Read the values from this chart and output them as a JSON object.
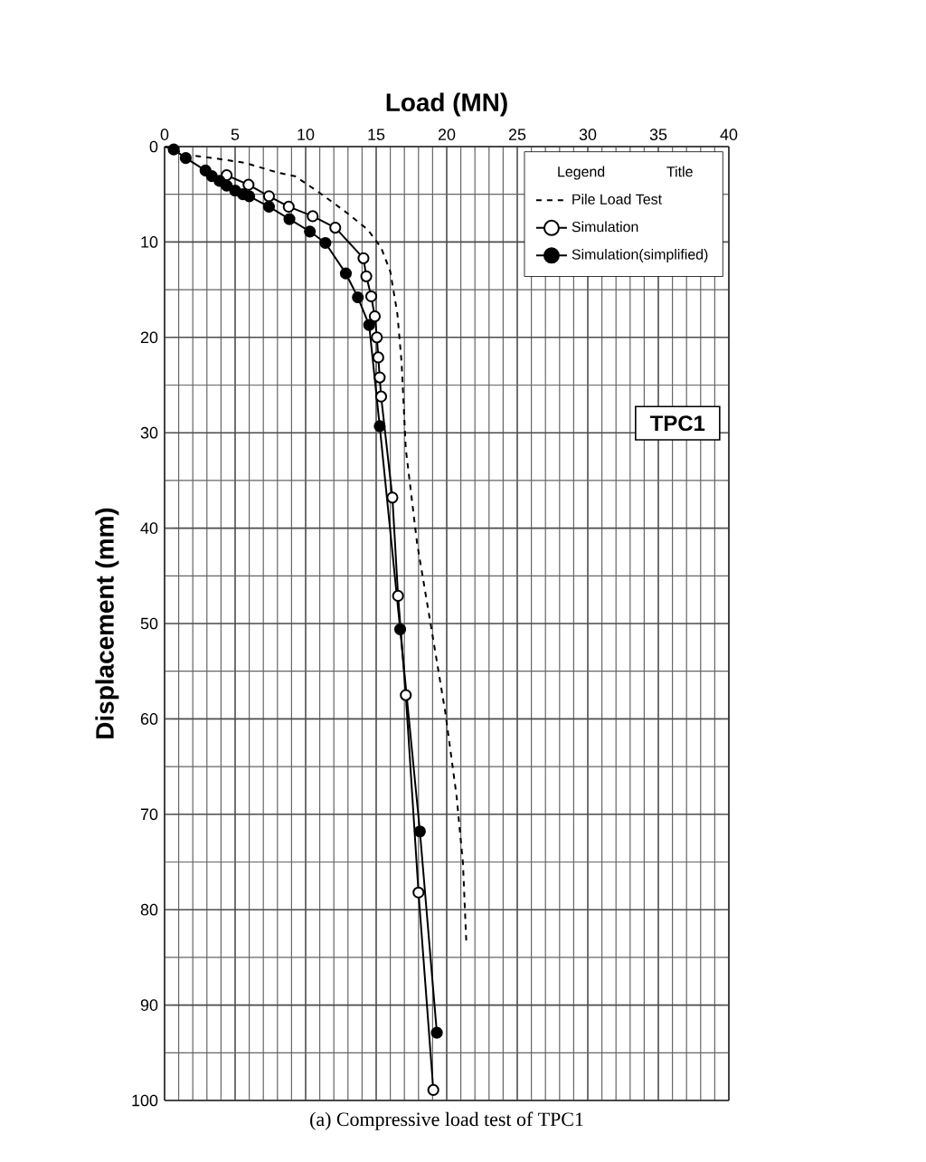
{
  "chart_data": {
    "type": "line",
    "xlabel": "Load (MN)",
    "ylabel": "Displacement (mm)",
    "xlim": [
      0,
      40
    ],
    "xticks": [
      0,
      5,
      10,
      15,
      20,
      25,
      30,
      35,
      40
    ],
    "ylim": [
      100,
      0
    ],
    "yticks": [
      0,
      10,
      20,
      30,
      40,
      50,
      60,
      70,
      80,
      90,
      100
    ],
    "grid": true,
    "legend": "top right",
    "legend_title": "Legend",
    "annotations": [
      "Title",
      "TPC1",
      "(a) Compressive load test of TPC1"
    ],
    "series": [
      {
        "name": "Pile Load Test",
        "color": "#000000",
        "marker": "none",
        "line_style": "dashed",
        "x": [
          0,
          1.8,
          3.45,
          5.7,
          7.95,
          9.25,
          10.85,
          12.8,
          14.4,
          15.35,
          16.0,
          16.5,
          16.8,
          17.1,
          17.9,
          18.9,
          19.9,
          20.7,
          21.15,
          21.4
        ],
        "values": [
          0,
          0.9,
          1.2,
          1.7,
          2.7,
          3.1,
          4.7,
          6.8,
          8.7,
          10.6,
          13.1,
          17.5,
          22.6,
          31.7,
          41.6,
          50.4,
          59.3,
          68.1,
          75.1,
          83.8
        ]
      },
      {
        "name": "Simulation",
        "color": "#000000",
        "marker": "circle",
        "line_style": "solid",
        "x": [
          4.4,
          5.95,
          7.4,
          8.8,
          10.5,
          12.1,
          14.1,
          14.3,
          14.65,
          14.9,
          15.05,
          15.15,
          15.25,
          15.35,
          16.15,
          16.55,
          17.1,
          18.0,
          19.05
        ],
        "values": [
          3.0,
          4.0,
          5.2,
          6.3,
          7.3,
          8.5,
          11.7,
          13.6,
          15.7,
          17.8,
          20.0,
          22.1,
          24.2,
          26.2,
          36.8,
          47.1,
          57.5,
          78.2,
          98.9
        ]
      },
      {
        "name": "Simulation(simplified)",
        "color": "#000000",
        "marker": "circle",
        "line_style": "solid",
        "x": [
          0.65,
          1.5,
          2.9,
          3.35,
          3.9,
          4.4,
          5.0,
          5.55,
          6.0,
          7.4,
          8.85,
          10.3,
          11.4,
          12.85,
          13.7,
          14.5,
          15.25,
          16.7,
          18.1,
          19.3
        ],
        "values": [
          0.3,
          1.2,
          2.5,
          3.1,
          3.6,
          4.1,
          4.6,
          5.0,
          5.2,
          6.3,
          7.6,
          8.9,
          10.1,
          13.3,
          15.8,
          18.7,
          29.3,
          50.6,
          71.8,
          92.9
        ]
      }
    ]
  }
}
